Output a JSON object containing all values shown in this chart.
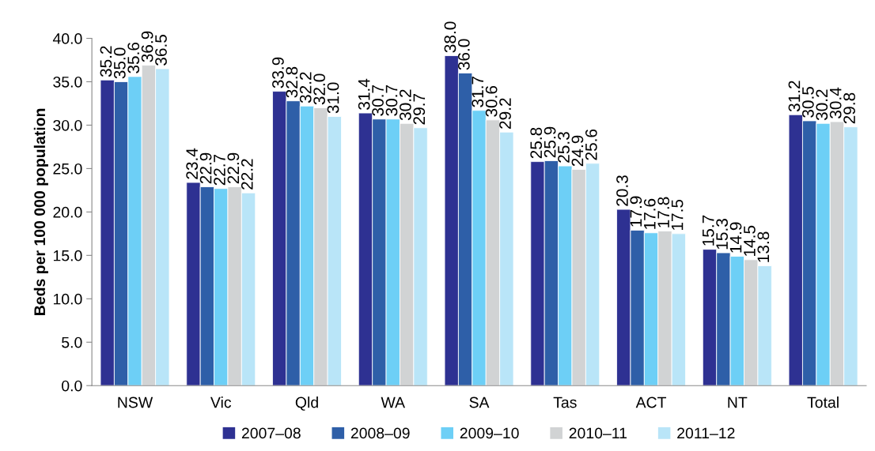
{
  "chart_data": {
    "type": "bar",
    "ylabel": "Beds per 100 000 population",
    "categories": [
      "NSW",
      "Vic",
      "Qld",
      "WA",
      "SA",
      "Tas",
      "ACT",
      "NT",
      "Total"
    ],
    "series": [
      {
        "name": "2007–08",
        "color": "#2e3192",
        "values": [
          35.2,
          23.4,
          33.9,
          31.4,
          38.0,
          25.8,
          20.3,
          15.7,
          31.2
        ],
        "value_labels": [
          "35.2",
          "23.4",
          "33.9",
          "31.4",
          "38.0",
          "25.8",
          "20.3",
          "15.7",
          "31.2"
        ]
      },
      {
        "name": "2008–09",
        "color": "#2e5fa8",
        "values": [
          35.0,
          22.9,
          32.8,
          30.7,
          36.0,
          25.9,
          17.9,
          15.3,
          30.5
        ],
        "value_labels": [
          "35.0",
          "22.9",
          "32.8",
          "30.7",
          "36.0",
          "25.9",
          "17.9",
          "15.3",
          "30.5"
        ]
      },
      {
        "name": "2009–10",
        "color": "#6dcff6",
        "values": [
          35.6,
          22.7,
          32.2,
          30.7,
          31.7,
          25.3,
          17.6,
          14.9,
          30.2
        ],
        "value_labels": [
          "35.6",
          "22.7",
          "32.2",
          "30.7",
          "31.7",
          "25.3",
          "17.6",
          "14.9",
          "30.2"
        ]
      },
      {
        "name": "2010–11",
        "color": "#d1d3d4",
        "values": [
          36.9,
          22.9,
          32.0,
          30.2,
          30.6,
          24.9,
          17.8,
          14.5,
          30.4
        ],
        "value_labels": [
          "36.9",
          "22.9",
          "32.0",
          "30.2",
          "30.6",
          "24.9",
          "17.8",
          "14.5",
          "30.4"
        ]
      },
      {
        "name": "2011–12",
        "color": "#b9e5f8",
        "values": [
          36.5,
          22.2,
          31.0,
          29.7,
          29.2,
          25.6,
          17.5,
          13.8,
          29.8
        ],
        "value_labels": [
          "36.5",
          "22.2",
          "31.0",
          "29.7",
          "29.2",
          "25.6",
          "17.5",
          "13.8",
          "29.8"
        ]
      }
    ],
    "ylim": [
      0,
      40
    ],
    "yticks": [
      {
        "value": 0,
        "label": "0.0"
      },
      {
        "value": 5,
        "label": "5.0"
      },
      {
        "value": 10,
        "label": "10.0"
      },
      {
        "value": 15,
        "label": "15.0"
      },
      {
        "value": 20,
        "label": "20.0"
      },
      {
        "value": 25,
        "label": "25.0"
      },
      {
        "value": 30,
        "label": "30.0"
      },
      {
        "value": 35,
        "label": "35.0"
      },
      {
        "value": 40,
        "label": "40.0"
      }
    ],
    "grid": false,
    "legend": "bottom"
  }
}
